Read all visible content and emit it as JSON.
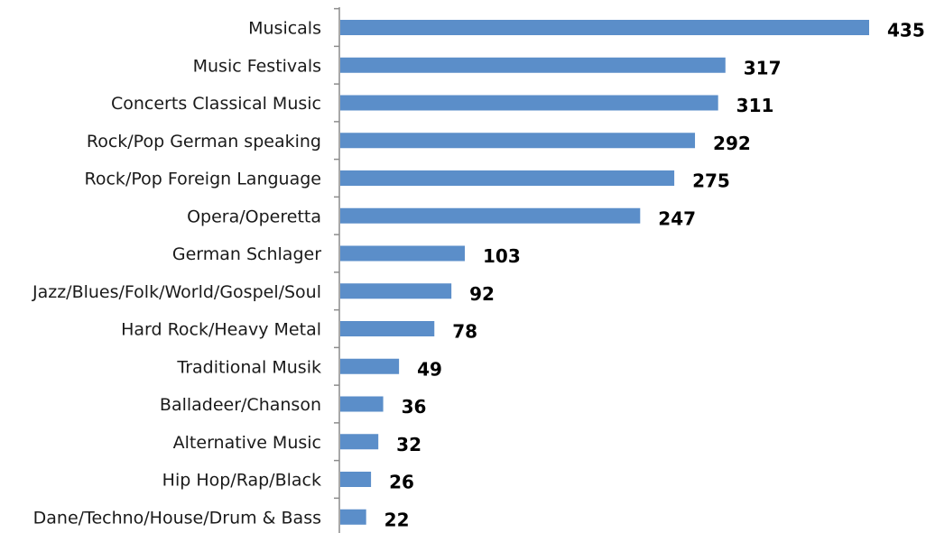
{
  "chart_data": {
    "type": "bar",
    "orientation": "horizontal",
    "categories": [
      "Musicals",
      "Music Festivals",
      "Concerts Classical Music",
      "Rock/Pop German speaking",
      "Rock/Pop Foreign Language",
      "Opera/Operetta",
      "German Schlager",
      "Jazz/Blues/Folk/World/Gospel/Soul",
      "Hard Rock/Heavy Metal",
      "Traditional Musik",
      "Balladeer/Chanson",
      "Alternative Music",
      "Hip Hop/Rap/Black",
      "Dane/Techno/House/Drum & Bass"
    ],
    "values": [
      435,
      317,
      311,
      292,
      275,
      247,
      103,
      92,
      78,
      49,
      36,
      32,
      26,
      22
    ],
    "value_labels": [
      "435",
      "317",
      "311",
      "292",
      "275",
      "247",
      "103",
      "92",
      "78",
      "49",
      "36",
      "32",
      "26",
      "22"
    ],
    "bar_color": "#5b8ec9",
    "axis_color": "#8c8c8c",
    "xlim": [
      0,
      435
    ],
    "grid": false,
    "legend": "none"
  }
}
